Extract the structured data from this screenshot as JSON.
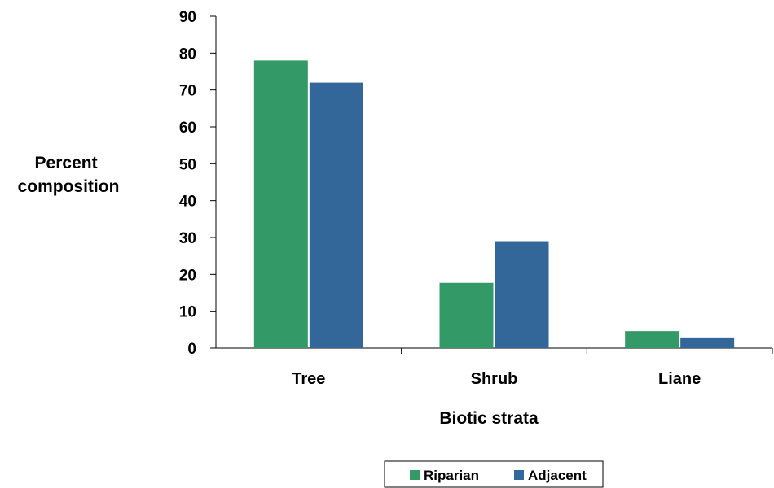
{
  "chart_data": {
    "type": "bar",
    "categories": [
      "Tree",
      "Shrub",
      "Liane"
    ],
    "series": [
      {
        "name": "Riparian",
        "color": "#339966",
        "values": [
          78,
          17.7,
          4.6
        ]
      },
      {
        "name": "Adjacent",
        "color": "#336699",
        "values": [
          72,
          29,
          2.9
        ]
      }
    ],
    "ylabel_lines": [
      "Percent",
      "composition"
    ],
    "xlabel": "Biotic strata",
    "ylim": [
      0,
      90
    ],
    "yticks": [
      0,
      10,
      20,
      30,
      40,
      50,
      60,
      70,
      80,
      90
    ],
    "grid": false,
    "legend_position": "bottom"
  }
}
